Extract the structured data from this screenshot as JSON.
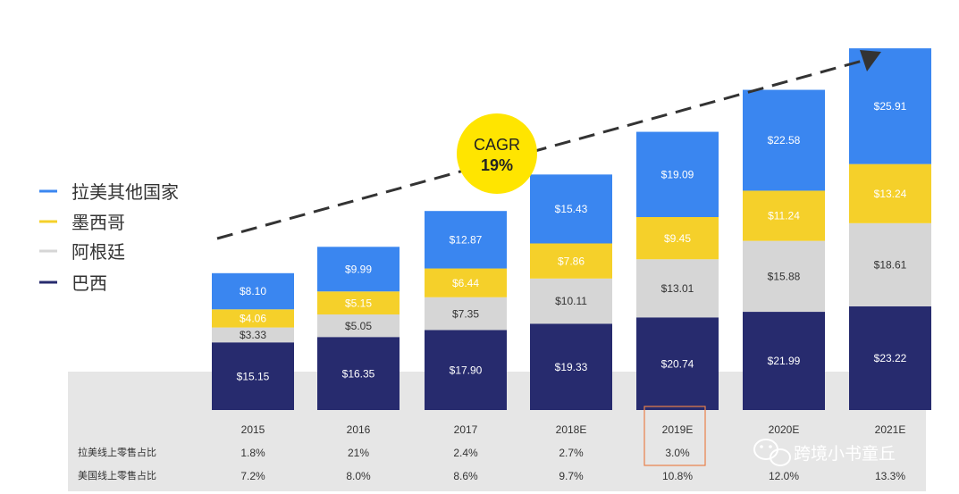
{
  "chart_data": {
    "type": "bar",
    "stacked": true,
    "categories": [
      "2015",
      "2016",
      "2017",
      "2018E",
      "2019E",
      "2020E",
      "2021E"
    ],
    "series": [
      {
        "name": "巴西",
        "color": "#272b6e",
        "values": [
          15.15,
          16.35,
          17.9,
          19.33,
          20.74,
          21.99,
          23.22
        ],
        "labels": [
          "$15.15",
          "$16.35",
          "$17.90",
          "$19.33",
          "$20.74",
          "$21.99",
          "$23.22"
        ]
      },
      {
        "name": "阿根廷",
        "color": "#d6d6d6",
        "values": [
          3.33,
          5.05,
          7.35,
          10.11,
          13.01,
          15.88,
          18.61
        ],
        "labels": [
          "$3.33",
          "$5.05",
          "$7.35",
          "$10.11",
          "$13.01",
          "$15.88",
          "$18.61"
        ]
      },
      {
        "name": "墨西哥",
        "color": "#f5d02a",
        "values": [
          4.06,
          5.15,
          6.44,
          7.86,
          9.45,
          11.24,
          13.24
        ],
        "labels": [
          "$4.06",
          "$5.15",
          "$6.44",
          "$7.86",
          "$9.45",
          "$11.24",
          "$13.24"
        ]
      },
      {
        "name": "拉美其他国家",
        "color": "#3a86f0",
        "values": [
          8.1,
          9.99,
          12.87,
          15.43,
          19.09,
          22.58,
          25.91
        ],
        "labels": [
          "$8.10",
          "$9.99",
          "$12.87",
          "$15.43",
          "$19.09",
          "$22.58",
          "$25.91"
        ]
      }
    ],
    "legend_order": [
      "拉美其他国家",
      "墨西哥",
      "阿根廷",
      "巴西"
    ],
    "legend_position": "left",
    "annotation": {
      "title": "CAGR",
      "value": "19%",
      "trend_arrow": "dashed, rising"
    },
    "highlighted_category": "2019E",
    "table_rows": [
      {
        "label": "拉美线上零售占比",
        "values": [
          "1.8%",
          "21%",
          "2.4%",
          "2.7%",
          "3.0%",
          "",
          ""
        ]
      },
      {
        "label": "美国线上零售占比",
        "values": [
          "7.2%",
          "8.0%",
          "8.6%",
          "9.7%",
          "10.8%",
          "12.0%",
          "13.3%"
        ]
      }
    ]
  },
  "watermark": {
    "text": "跨境小书童丘",
    "icon": "wechat-icon"
  },
  "colors": {
    "table_background": "#e6e6e6",
    "cagr_circle": "#ffe500",
    "highlight_box": "#e8804a",
    "trend_line": "#333333"
  }
}
